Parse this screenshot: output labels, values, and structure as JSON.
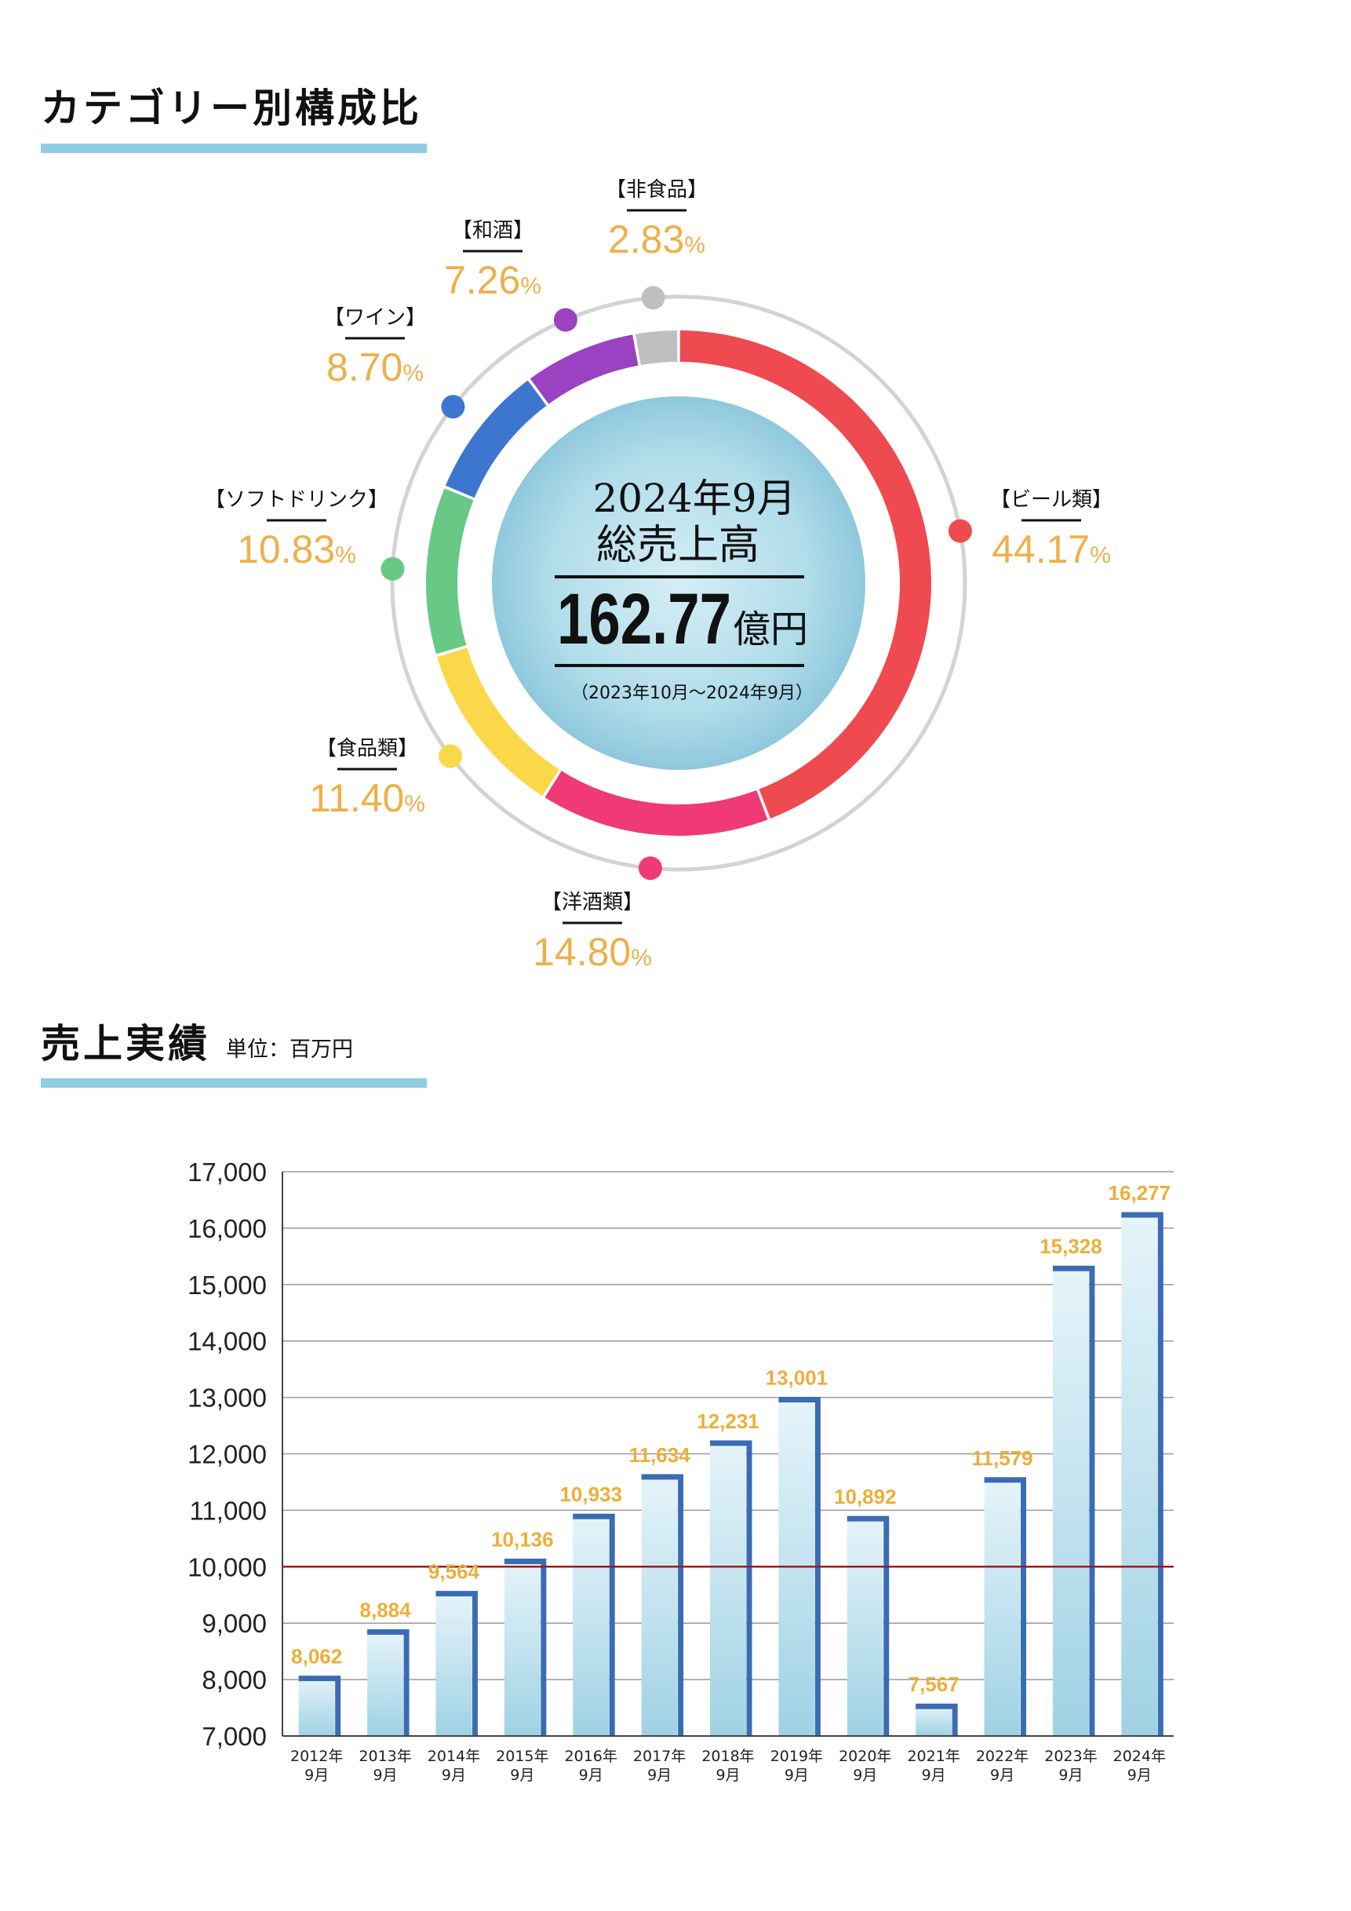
{
  "section1": {
    "title": "カテゴリー別構成比"
  },
  "donut": {
    "center": {
      "line1": "2024年9月",
      "line2": "総売上高",
      "value": "162.77",
      "value_unit": "億円",
      "period": "（2023年10月～2024年9月）"
    },
    "chart_data": {
      "type": "pie",
      "segments": [
        {
          "label": "【ビール類】",
          "value": 44.17,
          "pct_text": "44.17",
          "color": "#ee4a4f"
        },
        {
          "label": "【洋酒類】",
          "value": 14.8,
          "pct_text": "14.80",
          "color": "#ef3a75"
        },
        {
          "label": "【食品類】",
          "value": 11.4,
          "pct_text": "11.40",
          "color": "#fbd84a"
        },
        {
          "label": "【ソフトドリンク】",
          "value": 10.83,
          "pct_text": "10.83",
          "color": "#68c985"
        },
        {
          "label": "【ワイン】",
          "value": 8.7,
          "pct_text": "8.70",
          "color": "#3d76cf"
        },
        {
          "label": "【和酒】",
          "value": 7.26,
          "pct_text": "7.26",
          "color": "#9a42c2"
        },
        {
          "label": "【非食品】",
          "value": 2.83,
          "pct_text": "2.83",
          "color": "#bfbfbf"
        }
      ],
      "pct_symbol": "%"
    }
  },
  "section2": {
    "title": "売上実績",
    "unit": "単位：百万円"
  },
  "bar": {
    "chart_data": {
      "type": "bar",
      "categories": [
        [
          "2012年",
          "9月"
        ],
        [
          "2013年",
          "9月"
        ],
        [
          "2014年",
          "9月"
        ],
        [
          "2015年",
          "9月"
        ],
        [
          "2016年",
          "9月"
        ],
        [
          "2017年",
          "9月"
        ],
        [
          "2018年",
          "9月"
        ],
        [
          "2019年",
          "9月"
        ],
        [
          "2020年",
          "9月"
        ],
        [
          "2021年",
          "9月"
        ],
        [
          "2022年",
          "9月"
        ],
        [
          "2023年",
          "9月"
        ],
        [
          "2024年",
          "9月"
        ]
      ],
      "values": [
        8062,
        8884,
        9564,
        10136,
        10933,
        11634,
        12231,
        13001,
        10892,
        7567,
        11579,
        15328,
        16277
      ],
      "value_labels": [
        "8,062",
        "8,884",
        "9,564",
        "10,136",
        "10,933",
        "11,634",
        "12,231",
        "13,001",
        "10,892",
        "7,567",
        "11,579",
        "15,328",
        "16,277"
      ],
      "ylim": [
        7000,
        17000
      ],
      "yticks": [
        "7,000",
        "8,000",
        "9,000",
        "10,000",
        "11,000",
        "12,000",
        "13,000",
        "14,000",
        "15,000",
        "16,000",
        "17,000"
      ],
      "reference_line": 10000,
      "grid": true,
      "colors": {
        "bar_light": "#e6f4fa",
        "bar_dark": "#9fd2e4",
        "bar_edge": "#3a6cb3",
        "ref_line": "#a01a1a",
        "value_text": "#eeae3a"
      }
    }
  }
}
